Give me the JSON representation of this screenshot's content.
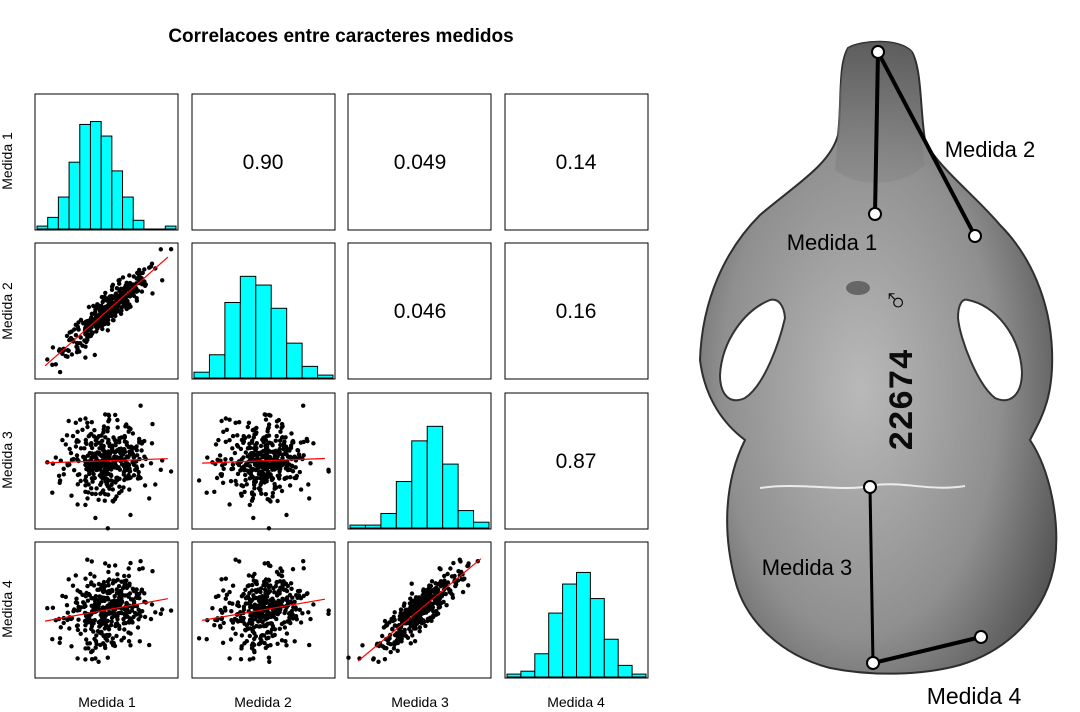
{
  "chart_data": {
    "type": "scatter-matrix",
    "title": "Correlacoes entre caracteres medidos",
    "variables": [
      "Medida 1",
      "Medida 2",
      "Medida 3",
      "Medida 4"
    ],
    "correlations": {
      "m1_m2": "0.90",
      "m1_m3": "0.049",
      "m1_m4": "0.14",
      "m2_m3": "0.046",
      "m2_m4": "0.16",
      "m3_m4": "0.87"
    },
    "histograms": {
      "m1": [
        1,
        4,
        11,
        23,
        36,
        37,
        32,
        20,
        11,
        3,
        0,
        0,
        1
      ],
      "m2": [
        2,
        8,
        26,
        35,
        32,
        24,
        12,
        4,
        1
      ],
      "m3": [
        1,
        1,
        5,
        16,
        30,
        35,
        22,
        6,
        2
      ],
      "m4": [
        1,
        2,
        8,
        22,
        32,
        36,
        27,
        13,
        4,
        1
      ]
    },
    "histogram_color": "#00ffff",
    "smoother_color": "#ff0000",
    "point_color": "#000000"
  },
  "photo": {
    "specimen_number": "22674",
    "specimen_sex_mark": "♂",
    "labels": {
      "medida_1": "Medida 1",
      "medida_2": "Medida 2",
      "medida_3": "Medida 3",
      "medida_4": "Medida 4"
    }
  }
}
